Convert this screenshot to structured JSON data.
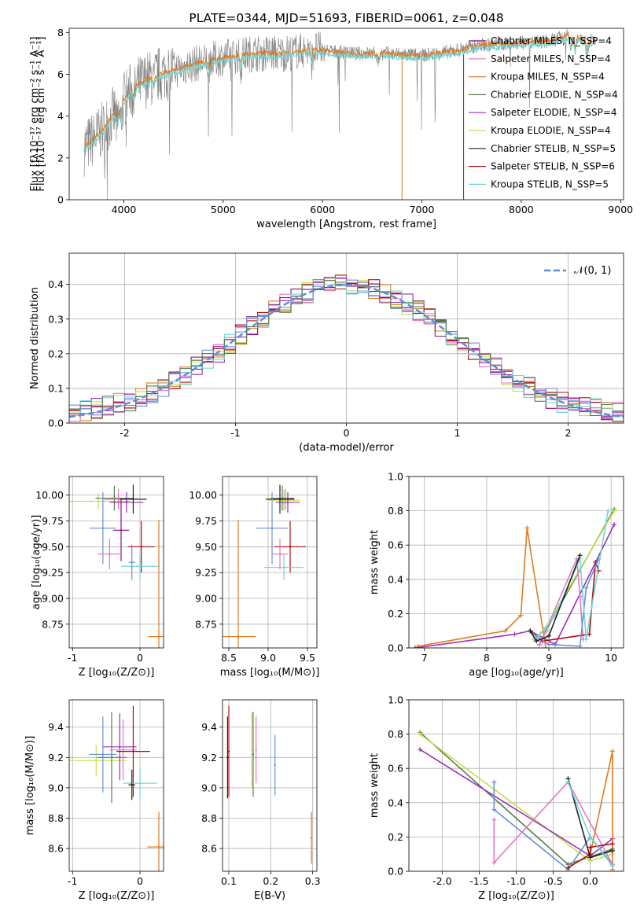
{
  "colors": {
    "chabrier_miles": "#8f0a8f",
    "salpeter_miles": "#e377c2",
    "kroupa_miles": "#e07b1f",
    "chabrier_elodie": "#58804a",
    "salpeter_elodie": "#9b30b5",
    "kroupa_elodie": "#c3e04b",
    "chabrier_stelib": "#222222",
    "salpeter_stelib": "#b00c10",
    "kroupa_stelib": "#72d6d9",
    "data": "#7f7f7f",
    "normal_curve": "#5b8fd6",
    "blue_series": "#6a8fd9"
  },
  "chart_data": [
    {
      "type": "line",
      "title": "PLATE=0344, MJD=51693, FIBERID=0061, z=0.048",
      "xlabel": "wavelength [Angstrom, rest frame]",
      "ylabel": "Flux [fλ10⁻¹⁷ erg cm⁻² s⁻¹ A⁻¹]",
      "xlim": [
        3450,
        9030
      ],
      "ylim": [
        0,
        8.2
      ],
      "xticks": [
        4000,
        5000,
        6000,
        7000,
        8000,
        9000
      ],
      "yticks": [
        0,
        2,
        4,
        6,
        8
      ],
      "legend_position": "right",
      "legend": [
        {
          "name": "Chabrier MILES, N_SSP=4",
          "color_key": "chabrier_miles"
        },
        {
          "name": "Salpeter MILES, N_SSP=4",
          "color_key": "salpeter_miles"
        },
        {
          "name": "Kroupa MILES, N_SSP=4",
          "color_key": "kroupa_miles"
        },
        {
          "name": "Chabrier ELODIE, N_SSP=4",
          "color_key": "chabrier_elodie"
        },
        {
          "name": "Salpeter ELODIE, N_SSP=4",
          "color_key": "salpeter_elodie"
        },
        {
          "name": "Kroupa ELODIE, N_SSP=4",
          "color_key": "kroupa_elodie"
        },
        {
          "name": "Chabrier STELIB, N_SSP=5",
          "color_key": "chabrier_stelib"
        },
        {
          "name": "Salpeter STELIB, N_SSP=6",
          "color_key": "salpeter_stelib"
        },
        {
          "name": "Kroupa STELIB, N_SSP=5",
          "color_key": "kroupa_stelib"
        }
      ],
      "continuum": {
        "x": [
          3600,
          3700,
          3800,
          3900,
          4000,
          4100,
          4300,
          4500,
          4800,
          5000,
          5300,
          5600,
          5900,
          6100,
          6300,
          6600,
          7000,
          7300,
          7600,
          8000,
          8300,
          8500,
          8700
        ],
        "y": [
          2.5,
          2.9,
          3.4,
          4.1,
          4.8,
          5.4,
          5.9,
          6.2,
          6.6,
          6.8,
          7.0,
          7.0,
          7.2,
          7.1,
          7.0,
          7.0,
          6.9,
          7.1,
          7.4,
          7.5,
          7.6,
          7.9,
          7.6
        ]
      },
      "model_span": [
        3600,
        8750
      ]
    },
    {
      "type": "line",
      "xlabel": "(data-model)/error",
      "ylabel": "Normed distribution",
      "xlim": [
        -2.5,
        2.5
      ],
      "ylim": [
        0,
        0.49
      ],
      "xticks": [
        -2,
        -1,
        0,
        1,
        2
      ],
      "yticks": [
        0.0,
        0.1,
        0.2,
        0.3,
        0.4
      ],
      "grid": true,
      "legend_position": "top-right",
      "curve_label": "𝒩(0, 1)",
      "bin_width": 0.1,
      "histogram_colors": [
        "kroupa_miles",
        "salpeter_miles",
        "chabrier_miles",
        "kroupa_elodie",
        "salpeter_elodie",
        "salpeter_stelib",
        "kroupa_stelib",
        "blue_series",
        "chabrier_elodie"
      ]
    },
    {
      "type": "scatter",
      "xlabel": "Z [log₁₀(Z/Z⊙)]",
      "ylabel": "age  [log₁₀(age/yr)]",
      "xlim": [
        -1.05,
        0.35
      ],
      "ylim": [
        8.52,
        10.18
      ],
      "xticks": [
        -1,
        0
      ],
      "yticks": [
        8.75,
        9.0,
        9.25,
        9.5,
        9.75,
        10.0
      ],
      "grid": true,
      "points": [
        {
          "x": -0.62,
          "y": 9.94,
          "xerr": 0.48,
          "yerr": 0.08,
          "color_key": "kroupa_elodie"
        },
        {
          "x": -0.38,
          "y": 9.97,
          "xerr": 0.28,
          "yerr": 0.12,
          "color_key": "chabrier_elodie"
        },
        {
          "x": -0.32,
          "y": 9.96,
          "xerr": 0.22,
          "yerr": 0.1,
          "color_key": "salpeter_miles"
        },
        {
          "x": -0.2,
          "y": 9.93,
          "xerr": 0.25,
          "yerr": 0.1,
          "color_key": "salpeter_elodie"
        },
        {
          "x": -0.1,
          "y": 9.96,
          "xerr": 0.2,
          "yerr": 0.14,
          "color_key": "chabrier_stelib"
        },
        {
          "x": -0.55,
          "y": 9.68,
          "xerr": 0.2,
          "yerr": 0.35,
          "color_key": "blue_series"
        },
        {
          "x": -0.28,
          "y": 9.66,
          "xerr": 0.12,
          "yerr": 0.3,
          "color_key": "chabrier_miles"
        },
        {
          "x": -0.45,
          "y": 9.43,
          "xerr": 0.18,
          "yerr": 0.15,
          "color_key": "salpeter_miles"
        },
        {
          "x": 0.02,
          "y": 9.5,
          "xerr": 0.2,
          "yerr": 0.25,
          "color_key": "salpeter_stelib"
        },
        {
          "x": 0.0,
          "y": 9.31,
          "xerr": 0.28,
          "yerr": 0.12,
          "color_key": "kroupa_stelib"
        },
        {
          "x": -0.12,
          "y": 9.35,
          "xerr": 0.05,
          "yerr": 0.17,
          "color_key": "blue_series"
        },
        {
          "x": 0.28,
          "y": 8.63,
          "xerr": 0.16,
          "yerr": 1.13,
          "color_key": "kroupa_miles"
        }
      ]
    },
    {
      "type": "scatter",
      "xlabel": "mass [log₁₀(M/M⊙)]",
      "xlim": [
        8.42,
        9.62
      ],
      "ylim": [
        8.52,
        10.18
      ],
      "xticks": [
        8.5,
        9.0,
        9.5
      ],
      "yticks": [
        8.75,
        9.0,
        9.25,
        9.5,
        9.75,
        10.0
      ],
      "grid": true,
      "points": [
        {
          "x": 9.2,
          "y": 9.95,
          "xerr": 0.2,
          "yerr": 0.1,
          "color_key": "kroupa_elodie"
        },
        {
          "x": 9.18,
          "y": 9.97,
          "xerr": 0.15,
          "yerr": 0.12,
          "color_key": "chabrier_elodie"
        },
        {
          "x": 9.22,
          "y": 9.96,
          "xerr": 0.12,
          "yerr": 0.1,
          "color_key": "salpeter_miles"
        },
        {
          "x": 9.25,
          "y": 9.93,
          "xerr": 0.15,
          "yerr": 0.1,
          "color_key": "salpeter_elodie"
        },
        {
          "x": 9.15,
          "y": 9.96,
          "xerr": 0.18,
          "yerr": 0.14,
          "color_key": "chabrier_stelib"
        },
        {
          "x": 9.05,
          "y": 9.68,
          "xerr": 0.2,
          "yerr": 0.35,
          "color_key": "blue_series"
        },
        {
          "x": 9.28,
          "y": 9.5,
          "xerr": 0.2,
          "yerr": 0.25,
          "color_key": "salpeter_stelib"
        },
        {
          "x": 9.2,
          "y": 9.3,
          "xerr": 0.25,
          "yerr": 0.12,
          "color_key": "kroupa_stelib"
        },
        {
          "x": 9.15,
          "y": 9.43,
          "xerr": 0.1,
          "yerr": 0.15,
          "color_key": "salpeter_miles"
        },
        {
          "x": 8.62,
          "y": 8.63,
          "xerr": 0.22,
          "yerr": 1.13,
          "color_key": "kroupa_miles"
        }
      ]
    },
    {
      "type": "line",
      "xlabel": "age  [log₁₀(age/yr)]",
      "ylabel": "mass weight",
      "xlim": [
        6.75,
        10.2
      ],
      "ylim": [
        0,
        1.0
      ],
      "xticks": [
        7,
        8,
        9,
        10
      ],
      "yticks": [
        0.0,
        0.2,
        0.4,
        0.6,
        0.8,
        1.0
      ],
      "grid": true,
      "series": [
        {
          "color_key": "kroupa_miles",
          "x": [
            6.9,
            8.3,
            8.55,
            8.65,
            8.95
          ],
          "y": [
            0.01,
            0.1,
            0.19,
            0.7,
            0.0
          ]
        },
        {
          "color_key": "salpeter_elodie",
          "x": [
            6.85,
            8.45,
            8.7,
            9.1,
            10.05
          ],
          "y": [
            0.0,
            0.08,
            0.1,
            0.02,
            0.72
          ]
        },
        {
          "color_key": "chabrier_elodie",
          "x": [
            8.85,
            8.95,
            10.05
          ],
          "y": [
            0.02,
            0.1,
            0.81
          ]
        },
        {
          "color_key": "kroupa_elodie",
          "x": [
            8.75,
            8.95,
            10.05
          ],
          "y": [
            0.05,
            0.12,
            0.8
          ]
        },
        {
          "color_key": "salpeter_miles",
          "x": [
            8.85,
            9.45,
            9.5,
            9.55
          ],
          "y": [
            0.02,
            0.52,
            0.3,
            0.05
          ]
        },
        {
          "color_key": "salpeter_stelib",
          "x": [
            8.7,
            8.9,
            9.65,
            9.75,
            9.8
          ],
          "y": [
            0.1,
            0.04,
            0.08,
            0.5,
            0.45
          ]
        },
        {
          "color_key": "blue_series",
          "x": [
            8.75,
            9.0,
            9.5,
            9.6,
            9.8
          ],
          "y": [
            0.08,
            0.02,
            0.01,
            0.35,
            0.52
          ]
        },
        {
          "color_key": "kroupa_stelib",
          "x": [
            8.8,
            9.1,
            9.5,
            9.6,
            9.95
          ],
          "y": [
            0.05,
            0.19,
            0.52,
            0.05,
            0.8
          ]
        },
        {
          "color_key": "chabrier_stelib",
          "x": [
            8.7,
            8.8,
            9.0,
            9.5
          ],
          "y": [
            0.1,
            0.04,
            0.07,
            0.54
          ]
        }
      ]
    },
    {
      "type": "scatter",
      "xlabel": "Z [log₁₀(Z/Z⊙)]",
      "ylabel": "mass [log₁₀(M/M⊙)]",
      "xlim": [
        -1.05,
        0.35
      ],
      "ylim": [
        8.45,
        9.58
      ],
      "xticks": [
        -1,
        0
      ],
      "yticks": [
        8.6,
        8.8,
        9.0,
        9.2,
        9.4
      ],
      "grid": true,
      "points": [
        {
          "x": -0.65,
          "y": 9.18,
          "xerr": 0.45,
          "yerr": 0.1,
          "color_key": "kroupa_elodie"
        },
        {
          "x": -0.42,
          "y": 9.2,
          "xerr": 0.22,
          "yerr": 0.3,
          "color_key": "chabrier_elodie"
        },
        {
          "x": -0.55,
          "y": 9.22,
          "xerr": 0.2,
          "yerr": 0.25,
          "color_key": "blue_series"
        },
        {
          "x": -0.3,
          "y": 9.27,
          "xerr": 0.25,
          "yerr": 0.22,
          "color_key": "salpeter_elodie"
        },
        {
          "x": -0.25,
          "y": 9.25,
          "xerr": 0.2,
          "yerr": 0.2,
          "color_key": "salpeter_miles"
        },
        {
          "x": -0.1,
          "y": 9.24,
          "xerr": 0.25,
          "yerr": 0.3,
          "color_key": "salpeter_stelib"
        },
        {
          "x": 0.0,
          "y": 9.03,
          "xerr": 0.25,
          "yerr": 0.1,
          "color_key": "kroupa_stelib"
        },
        {
          "x": -0.12,
          "y": 9.02,
          "xerr": 0.05,
          "yerr": 0.1,
          "color_key": "chabrier_stelib"
        },
        {
          "x": 0.28,
          "y": 8.61,
          "xerr": 0.17,
          "yerr": 0.23,
          "color_key": "kroupa_miles"
        }
      ]
    },
    {
      "type": "scatter",
      "xlabel": "E(B-V)",
      "xlim": [
        0.085,
        0.31
      ],
      "ylim": [
        8.45,
        9.58
      ],
      "xticks": [
        0.1,
        0.2,
        0.3
      ],
      "yticks": [
        8.6,
        8.8,
        9.0,
        9.2,
        9.4
      ],
      "grid": true,
      "points": [
        {
          "x": 0.097,
          "y": 9.2,
          "xerr": 0,
          "yerr": 0.27,
          "color_key": "chabrier_stelib"
        },
        {
          "x": 0.1,
          "y": 9.24,
          "xerr": 0,
          "yerr": 0.3,
          "color_key": "salpeter_stelib"
        },
        {
          "x": 0.155,
          "y": 9.25,
          "xerr": 0,
          "yerr": 0.25,
          "color_key": "kroupa_elodie"
        },
        {
          "x": 0.158,
          "y": 9.22,
          "xerr": 0,
          "yerr": 0.28,
          "color_key": "chabrier_elodie"
        },
        {
          "x": 0.165,
          "y": 9.25,
          "xerr": 0,
          "yerr": 0.22,
          "color_key": "salpeter_miles"
        },
        {
          "x": 0.21,
          "y": 9.15,
          "xerr": 0,
          "yerr": 0.2,
          "color_key": "blue_series"
        },
        {
          "x": 0.297,
          "y": 8.67,
          "xerr": 0,
          "yerr": 0.17,
          "color_key": "kroupa_miles"
        }
      ]
    },
    {
      "type": "line",
      "xlabel": "Z [log₁₀(Z/Z⊙)]",
      "ylabel": "mass weight",
      "xlim": [
        -2.45,
        0.45
      ],
      "ylim": [
        0,
        1.0
      ],
      "xticks": [
        -2.0,
        -1.5,
        -1.0,
        -0.5,
        0.0
      ],
      "yticks": [
        0.0,
        0.2,
        0.4,
        0.6,
        0.8,
        1.0
      ],
      "grid": true,
      "series": [
        {
          "color_key": "chabrier_elodie",
          "x": [
            -2.3,
            -0.3,
            0.3
          ],
          "y": [
            0.81,
            0.04,
            0.13
          ]
        },
        {
          "color_key": "kroupa_elodie",
          "x": [
            -2.3,
            0.0,
            0.3
          ],
          "y": [
            0.8,
            0.06,
            0.1
          ]
        },
        {
          "color_key": "salpeter_elodie",
          "x": [
            -2.3,
            0.0,
            0.3
          ],
          "y": [
            0.71,
            0.09,
            0.19
          ]
        },
        {
          "color_key": "blue_series",
          "x": [
            -1.3,
            -1.3,
            -0.3,
            0.0,
            0.3
          ],
          "y": [
            0.52,
            0.36,
            0.01,
            0.2,
            0.04
          ]
        },
        {
          "color_key": "salpeter_miles",
          "x": [
            -1.3,
            -1.3,
            -0.3,
            0.3
          ],
          "y": [
            0.3,
            0.05,
            0.52,
            0.04
          ]
        },
        {
          "color_key": "kroupa_miles",
          "x": [
            0.0,
            0.3,
            0.3
          ],
          "y": [
            0.1,
            0.7,
            0.01
          ]
        },
        {
          "color_key": "salpeter_stelib",
          "x": [
            -0.3,
            0.0,
            0.0,
            0.3
          ],
          "y": [
            0.02,
            0.1,
            0.14,
            0.16
          ]
        },
        {
          "color_key": "chabrier_stelib",
          "x": [
            -0.3,
            0.0,
            0.3
          ],
          "y": [
            0.54,
            0.08,
            0.12
          ]
        },
        {
          "color_key": "kroupa_stelib",
          "x": [
            -0.3,
            0.0,
            0.3
          ],
          "y": [
            0.52,
            0.2,
            0.03
          ]
        }
      ]
    }
  ]
}
